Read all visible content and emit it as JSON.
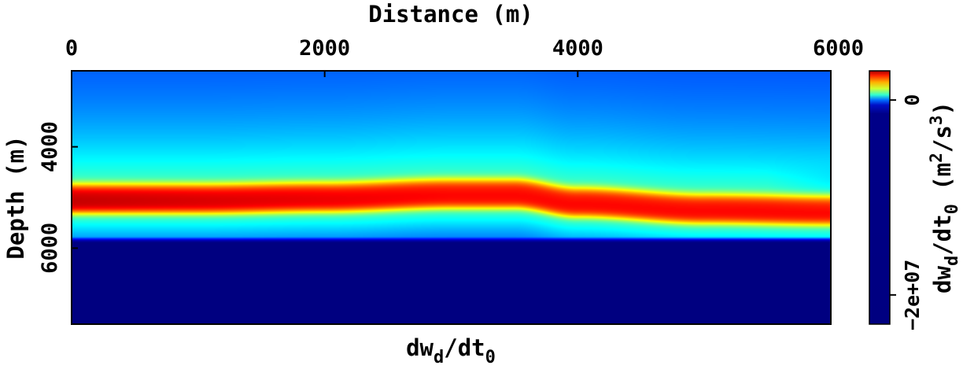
{
  "chart_data": {
    "type": "heatmap",
    "title": "dw_d/dt_0",
    "title_main": "dw",
    "title_sub": "d",
    "title_mid": "/dt",
    "title_sub2": "0",
    "xlabel": "Distance (m)",
    "ylabel": "Depth (m)",
    "x_axis_position": "top",
    "xlim": [
      0,
      6000
    ],
    "ylim": [
      2500,
      7500
    ],
    "y_inverted": true,
    "xticks": [
      0,
      2000,
      4000,
      6000
    ],
    "xtick_labels": [
      "0",
      "2000",
      "4000",
      "6000"
    ],
    "yticks": [
      4000,
      6000
    ],
    "ytick_labels": [
      "4000",
      "6000"
    ],
    "colormap": "jet",
    "colorbar": {
      "label": "dw_d/dt_0 (m^2/s^3)",
      "label_main": "dw",
      "label_sub": "d",
      "label_mid": "/dt",
      "label_sub2": "0",
      "label_unit": " (m",
      "label_sup": "2",
      "label_unit2": "/s",
      "label_sup2": "3",
      "label_close": ")",
      "ticks": [
        0,
        -20000000
      ],
      "tick_labels": [
        "0",
        "−2e+07"
      ],
      "range": [
        -23000000,
        3000000
      ],
      "placement": "right"
    },
    "field": {
      "description_of_values": "near 0 at shallow depth, strongly positive band around 5000 m depth, strongly negative below ~5900 m",
      "positive_band_center_depth": [
        {
          "x": 0,
          "depth": 5050
        },
        {
          "x": 1000,
          "depth": 5050
        },
        {
          "x": 2000,
          "depth": 5020
        },
        {
          "x": 3000,
          "depth": 4950
        },
        {
          "x": 3500,
          "depth": 4950
        },
        {
          "x": 4000,
          "depth": 5120
        },
        {
          "x": 5000,
          "depth": 5250
        },
        {
          "x": 6000,
          "depth": 5280
        }
      ],
      "negative_zone_top_depth": 5850,
      "peak_value": 3000000,
      "min_value": -23000000
    }
  }
}
